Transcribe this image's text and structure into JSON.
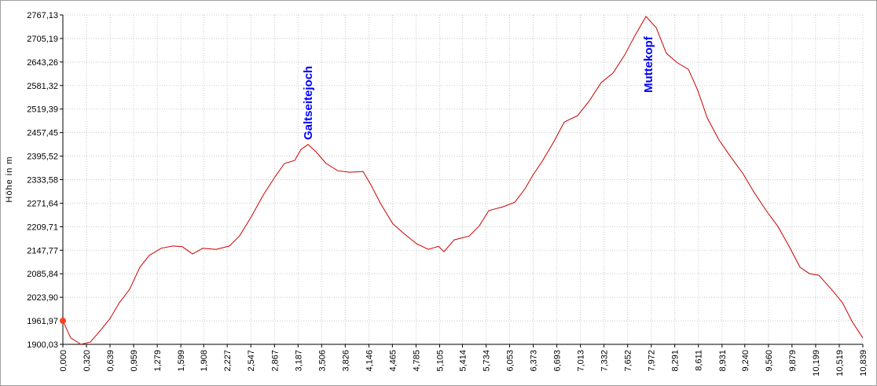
{
  "chart_data": {
    "type": "line",
    "y_label": "Höhe in m",
    "color": "#cc0000",
    "annotations": [
      {
        "text": "Galtseitejoch"
      },
      {
        "text": "Muttekopf"
      }
    ],
    "annotation_color": "#0000ff",
    "grid": true,
    "x": [
      0,
      0.106,
      0.245,
      0.373,
      0.511,
      0.639,
      0.767,
      0.905,
      1.043,
      1.171,
      1.331,
      1.491,
      1.618,
      1.757,
      1.895,
      2.076,
      2.257,
      2.396,
      2.555,
      2.715,
      2.875,
      3.002,
      3.141,
      3.226,
      3.322,
      3.428,
      3.567,
      3.726,
      3.886,
      4.067,
      4.174,
      4.312,
      4.472,
      4.631,
      4.791,
      4.951,
      5.089,
      5.164,
      5.302,
      5.505,
      5.643,
      5.771,
      5.963,
      6.122,
      6.26,
      6.367,
      6.495,
      6.654,
      6.793,
      6.974,
      7.133,
      7.293,
      7.453,
      7.613,
      7.751,
      7.9,
      8.038,
      8.177,
      8.326,
      8.475,
      8.603,
      8.731,
      8.89,
      9.05,
      9.21,
      9.369,
      9.529,
      9.689,
      9.848,
      9.987,
      10.115,
      10.242,
      10.413,
      10.562,
      10.7,
      10.839
    ],
    "values": [
      1962,
      1917,
      1900,
      1906,
      1937,
      1968,
      2010,
      2045,
      2103,
      2134,
      2153,
      2159,
      2157,
      2138,
      2153,
      2150,
      2159,
      2186,
      2237,
      2293,
      2341,
      2376,
      2384,
      2413,
      2426,
      2407,
      2376,
      2357,
      2353,
      2355,
      2320,
      2268,
      2217,
      2190,
      2165,
      2150,
      2158,
      2144,
      2175,
      2185,
      2212,
      2252,
      2262,
      2274,
      2309,
      2345,
      2382,
      2434,
      2485,
      2502,
      2541,
      2589,
      2614,
      2662,
      2713,
      2763,
      2734,
      2666,
      2641,
      2624,
      2568,
      2496,
      2438,
      2393,
      2351,
      2299,
      2252,
      2210,
      2155,
      2103,
      2086,
      2082,
      2045,
      2010,
      1958,
      1917
    ],
    "xlim": [
      0,
      10.839
    ],
    "ylim": [
      1900.03,
      2767.13
    ],
    "xticks": [
      {
        "value": 0,
        "label": "0,000"
      },
      {
        "value": 0.32,
        "label": "0,320"
      },
      {
        "value": 0.639,
        "label": "0,639"
      },
      {
        "value": 0.959,
        "label": "0,959"
      },
      {
        "value": 1.279,
        "label": "1,279"
      },
      {
        "value": 1.599,
        "label": "1,599"
      },
      {
        "value": 1.908,
        "label": "1,908"
      },
      {
        "value": 2.227,
        "label": "2,227"
      },
      {
        "value": 2.547,
        "label": "2,547"
      },
      {
        "value": 2.867,
        "label": "2,867"
      },
      {
        "value": 3.187,
        "label": "3,187"
      },
      {
        "value": 3.506,
        "label": "3,506"
      },
      {
        "value": 3.826,
        "label": "3,826"
      },
      {
        "value": 4.146,
        "label": "4,146"
      },
      {
        "value": 4.465,
        "label": "4,465"
      },
      {
        "value": 4.785,
        "label": "4,785"
      },
      {
        "value": 5.105,
        "label": "5,105"
      },
      {
        "value": 5.414,
        "label": "5,414"
      },
      {
        "value": 5.734,
        "label": "5,734"
      },
      {
        "value": 6.053,
        "label": "6,053"
      },
      {
        "value": 6.373,
        "label": "6,373"
      },
      {
        "value": 6.693,
        "label": "6,693"
      },
      {
        "value": 7.013,
        "label": "7,013"
      },
      {
        "value": 7.332,
        "label": "7,332"
      },
      {
        "value": 7.652,
        "label": "7,652"
      },
      {
        "value": 7.972,
        "label": "7,972"
      },
      {
        "value": 8.291,
        "label": "8,291"
      },
      {
        "value": 8.611,
        "label": "8,611"
      },
      {
        "value": 8.931,
        "label": "8,931"
      },
      {
        "value": 9.24,
        "label": "9,240"
      },
      {
        "value": 9.56,
        "label": "9,560"
      },
      {
        "value": 9.879,
        "label": "9,879"
      },
      {
        "value": 10.199,
        "label": "10,199"
      },
      {
        "value": 10.519,
        "label": "10,519"
      },
      {
        "value": 10.839,
        "label": "10,839"
      }
    ],
    "yticks": [
      {
        "value": 1900.03,
        "label": "1900,03"
      },
      {
        "value": 1961.97,
        "label": "1961,97"
      },
      {
        "value": 2023.9,
        "label": "2023,90"
      },
      {
        "value": 2085.84,
        "label": "2085,84"
      },
      {
        "value": 2147.77,
        "label": "2147,77"
      },
      {
        "value": 2209.71,
        "label": "2209,71"
      },
      {
        "value": 2271.64,
        "label": "2271,64"
      },
      {
        "value": 2333.58,
        "label": "2333,58"
      },
      {
        "value": 2395.52,
        "label": "2395,52"
      },
      {
        "value": 2457.45,
        "label": "2457,45"
      },
      {
        "value": 2519.39,
        "label": "2519,39"
      },
      {
        "value": 2581.32,
        "label": "2581,32"
      },
      {
        "value": 2643.26,
        "label": "2643,26"
      },
      {
        "value": 2705.19,
        "label": "2705,19"
      },
      {
        "value": 2767.13,
        "label": "2767,13"
      }
    ]
  }
}
